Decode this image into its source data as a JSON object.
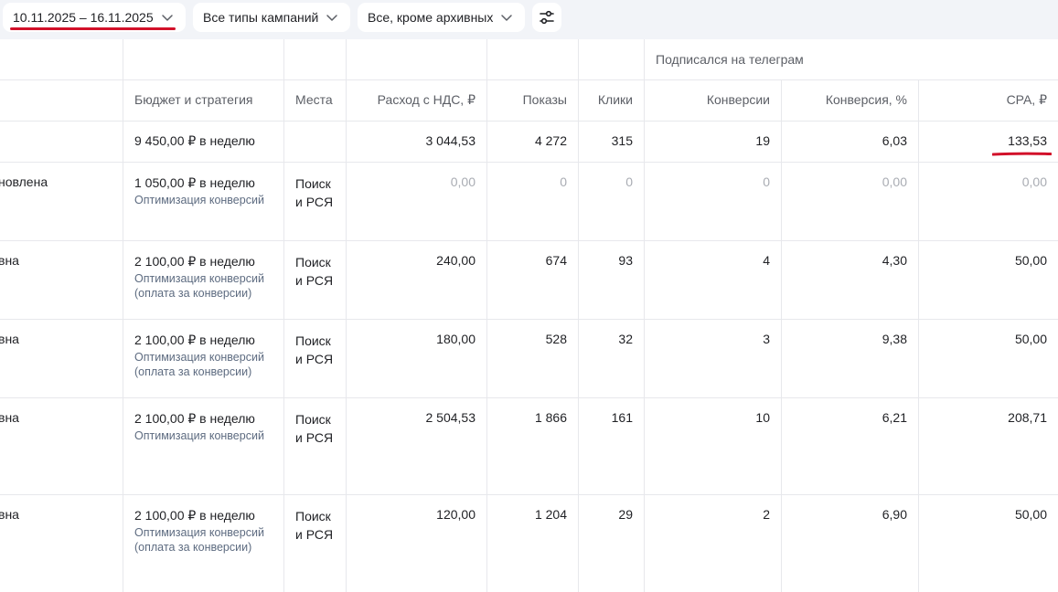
{
  "filters": {
    "date_range": "10.11.2025 – 16.11.2025",
    "campaign_types": "Все типы кампаний",
    "archive_filter": "Все, кроме архивных"
  },
  "colors": {
    "accent_underline": "#d2112a",
    "topbar_bg": "#f2f4f8",
    "muted_text": "#a9acb3"
  },
  "table": {
    "goal_group_label": "Подписался на телеграм",
    "columns": {
      "budget": "Бюджет и стратегия",
      "places": "Места",
      "cost": "Расход с НДС, ₽",
      "impressions": "Показы",
      "clicks": "Клики",
      "conversions": "Конверсии",
      "conversion_rate": "Конверсия, %",
      "cpa": "CPA, ₽"
    },
    "total": {
      "budget": "9 450,00 ₽ в неделю",
      "cost": "3 044,53",
      "impressions": "4 272",
      "clicks": "315",
      "conversions": "19",
      "conversion_rate": "6,03",
      "cpa": "133,53"
    },
    "rows": [
      {
        "status": "новлена",
        "budget": "1 050,00 ₽ в неделю",
        "strategy": "Оптимизация конверсий",
        "strategy_extra": "",
        "places_1": "Поиск",
        "places_2": "и РСЯ",
        "cost": "0,00",
        "impressions": "0",
        "clicks": "0",
        "conversions": "0",
        "conversion_rate": "0,00",
        "cpa": "0,00"
      },
      {
        "status": "вна",
        "budget": "2 100,00 ₽ в неделю",
        "strategy": "Оптимизация конверсий",
        "strategy_extra": "(оплата за конверсии)",
        "places_1": "Поиск",
        "places_2": "и РСЯ",
        "cost": "240,00",
        "impressions": "674",
        "clicks": "93",
        "conversions": "4",
        "conversion_rate": "4,30",
        "cpa": "50,00"
      },
      {
        "status": "вна",
        "budget": "2 100,00 ₽ в неделю",
        "strategy": "Оптимизация конверсий",
        "strategy_extra": "(оплата за конверсии)",
        "places_1": "Поиск",
        "places_2": "и РСЯ",
        "cost": "180,00",
        "impressions": "528",
        "clicks": "32",
        "conversions": "3",
        "conversion_rate": "9,38",
        "cpa": "50,00"
      },
      {
        "status": "вна",
        "budget": "2 100,00 ₽ в неделю",
        "strategy": "Оптимизация конверсий",
        "strategy_extra": "",
        "places_1": "Поиск",
        "places_2": "и РСЯ",
        "cost": "2 504,53",
        "impressions": "1 866",
        "clicks": "161",
        "conversions": "10",
        "conversion_rate": "6,21",
        "cpa": "208,71"
      },
      {
        "status": "вна",
        "budget": "2 100,00 ₽ в неделю",
        "strategy": "Оптимизация конверсий",
        "strategy_extra": "(оплата за конверсии)",
        "places_1": "Поиск",
        "places_2": "и РСЯ",
        "cost": "120,00",
        "impressions": "1 204",
        "clicks": "29",
        "conversions": "2",
        "conversion_rate": "6,90",
        "cpa": "50,00"
      }
    ]
  }
}
